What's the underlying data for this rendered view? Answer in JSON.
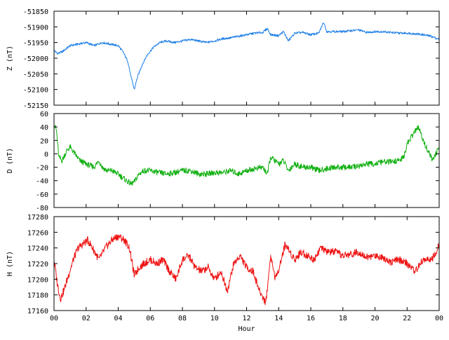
{
  "chart_data": {
    "type": "line",
    "x_axis": {
      "label": "Hour",
      "range": [
        0,
        24
      ],
      "ticks": [
        "00",
        "02",
        "04",
        "06",
        "08",
        "10",
        "12",
        "14",
        "16",
        "18",
        "20",
        "22",
        "00"
      ]
    },
    "panels": [
      {
        "ylabel": "Z (nT)",
        "color": "#1f7fe6",
        "ylim": [
          -52150,
          -51850
        ],
        "yticks": [
          "-51850",
          "-51900",
          "-51950",
          "-52000",
          "-52050",
          "-52100",
          "-52150"
        ],
        "series": {
          "x": [
            0,
            0.2,
            0.5,
            1,
            1.5,
            2,
            2.5,
            3,
            3.5,
            4,
            4.3,
            4.6,
            4.8,
            5.0,
            5.2,
            5.5,
            5.8,
            6.2,
            6.6,
            7,
            7.5,
            8,
            8.5,
            9,
            9.5,
            10,
            10.5,
            11,
            11.5,
            12,
            12.5,
            13,
            13.3,
            13.5,
            14,
            14.3,
            14.6,
            15,
            15.5,
            16,
            16.5,
            16.8,
            17,
            17.5,
            18,
            18.5,
            19,
            19.5,
            20,
            20.5,
            21,
            21.5,
            22,
            22.5,
            23,
            23.5,
            24
          ],
          "values": [
            -51975,
            -51985,
            -51980,
            -51960,
            -51955,
            -51950,
            -51960,
            -51950,
            -51955,
            -51960,
            -51980,
            -52010,
            -52060,
            -52100,
            -52060,
            -52020,
            -51990,
            -51965,
            -51950,
            -51945,
            -51950,
            -51945,
            -51940,
            -51945,
            -51950,
            -51945,
            -51938,
            -51935,
            -51930,
            -51925,
            -51920,
            -51918,
            -51905,
            -51925,
            -51928,
            -51915,
            -51945,
            -51920,
            -51918,
            -51925,
            -51920,
            -51885,
            -51915,
            -51915,
            -51915,
            -51912,
            -51910,
            -51918,
            -51915,
            -51915,
            -51918,
            -51920,
            -51920,
            -51922,
            -51925,
            -51930,
            -51940
          ]
        }
      },
      {
        "ylabel": "D (nT)",
        "color": "#11b011",
        "ylim": [
          -80,
          60
        ],
        "yticks": [
          "60",
          "40",
          "20",
          "0",
          "-20",
          "-40",
          "-60",
          "-80"
        ],
        "series": {
          "x": [
            0,
            0.15,
            0.3,
            0.5,
            0.8,
            1,
            1.3,
            1.6,
            2,
            2.5,
            2.8,
            3,
            3.3,
            3.6,
            4,
            4.4,
            4.8,
            5.0,
            5.3,
            5.6,
            6,
            6.5,
            7,
            7.5,
            8,
            8.5,
            9,
            9.5,
            10,
            10.5,
            11,
            11.5,
            12,
            12.5,
            13,
            13.3,
            13.5,
            14,
            14.3,
            14.6,
            15,
            15.5,
            16,
            16.5,
            17,
            17.5,
            18,
            18.5,
            19,
            19.5,
            20,
            20.5,
            21,
            21.5,
            21.8,
            22,
            22.4,
            22.7,
            23,
            23.3,
            23.6,
            24
          ],
          "values": [
            45,
            35,
            -5,
            -10,
            5,
            10,
            0,
            -10,
            -15,
            -20,
            -10,
            -20,
            -25,
            -25,
            -30,
            -38,
            -45,
            -42,
            -30,
            -25,
            -25,
            -28,
            -30,
            -28,
            -25,
            -25,
            -30,
            -30,
            -28,
            -28,
            -25,
            -30,
            -25,
            -22,
            -20,
            -30,
            -5,
            -15,
            -10,
            -25,
            -15,
            -20,
            -20,
            -25,
            -22,
            -20,
            -20,
            -20,
            -18,
            -15,
            -15,
            -12,
            -12,
            -10,
            -5,
            15,
            30,
            40,
            20,
            5,
            -10,
            10
          ]
        }
      },
      {
        "ylabel": "H (nT)",
        "color": "#ee1111",
        "ylim": [
          17160,
          17280
        ],
        "yticks": [
          "17280",
          "17260",
          "17240",
          "17220",
          "17200",
          "17180",
          "17160"
        ],
        "series": {
          "x": [
            0,
            0.2,
            0.4,
            0.6,
            0.9,
            1.2,
            1.5,
            1.8,
            2.1,
            2.4,
            2.8,
            3.2,
            3.6,
            4,
            4.4,
            4.7,
            5,
            5.3,
            5.6,
            6,
            6.4,
            6.8,
            7.2,
            7.6,
            8,
            8.4,
            8.8,
            9.2,
            9.6,
            10,
            10.4,
            10.8,
            11.2,
            11.6,
            12,
            12.4,
            12.8,
            13.2,
            13.5,
            13.8,
            14.1,
            14.4,
            14.7,
            15,
            15.4,
            15.8,
            16.2,
            16.6,
            17,
            17.5,
            18,
            18.5,
            19,
            19.5,
            20,
            20.5,
            21,
            21.5,
            22,
            22.5,
            23,
            23.5,
            23.8,
            24
          ],
          "values": [
            17225,
            17195,
            17175,
            17185,
            17205,
            17225,
            17240,
            17245,
            17250,
            17240,
            17225,
            17240,
            17250,
            17255,
            17250,
            17240,
            17205,
            17215,
            17220,
            17225,
            17220,
            17225,
            17210,
            17200,
            17225,
            17230,
            17215,
            17210,
            17215,
            17200,
            17210,
            17185,
            17220,
            17230,
            17215,
            17210,
            17185,
            17170,
            17230,
            17200,
            17220,
            17245,
            17235,
            17225,
            17235,
            17230,
            17225,
            17240,
            17235,
            17235,
            17230,
            17232,
            17235,
            17228,
            17230,
            17228,
            17222,
            17225,
            17220,
            17210,
            17225,
            17225,
            17232,
            17245
          ]
        }
      }
    ],
    "grid": false,
    "legend": "none"
  }
}
